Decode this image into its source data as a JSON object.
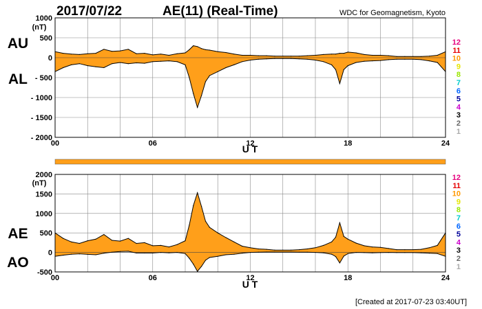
{
  "header": {
    "date": "2017/07/22",
    "title": "AE(11) (Real-Time)",
    "source": "WDC for Geomagnetism, Kyoto"
  },
  "footer": {
    "created": "[Created at 2017-07-23 03:40UT]"
  },
  "station_scale": {
    "labels": [
      "12",
      "11",
      "10",
      "9",
      "8",
      "7",
      "6",
      "5",
      "4",
      "3",
      "2",
      "1"
    ],
    "colors": [
      "#e6007e",
      "#e60000",
      "#ff9900",
      "#e6e600",
      "#99e600",
      "#00cccc",
      "#0066ff",
      "#000099",
      "#cc00cc",
      "#000000",
      "#666666",
      "#aaaaaa"
    ]
  },
  "coverage_bar": {
    "color": "#ff9f1a",
    "fraction": 1.0
  },
  "colors": {
    "fill": "#ff9f1a",
    "line": "#000000",
    "grid": "#888888"
  },
  "chart_data": [
    {
      "type": "area",
      "panel": "AU/AL",
      "upper_label": "AU",
      "lower_label": "AL",
      "ylabel": "(nT)",
      "xlabel": "U T",
      "xlim": [
        0,
        24
      ],
      "ylim": [
        -2000,
        1000
      ],
      "xticks": [
        "00",
        "06",
        "12",
        "18",
        "24"
      ],
      "yticks": [
        "1000",
        "500",
        "0",
        "- 500",
        "- 1000",
        "- 1500",
        "- 2000"
      ],
      "grid": true,
      "x": [
        0,
        0.5,
        1,
        1.5,
        2,
        2.5,
        3,
        3.5,
        4,
        4.5,
        5,
        5.5,
        6,
        6.5,
        7,
        7.5,
        8,
        8.25,
        8.5,
        8.75,
        9,
        9.25,
        9.5,
        10,
        10.5,
        11,
        11.5,
        12,
        12.5,
        13,
        13.5,
        14,
        14.5,
        15,
        15.5,
        16,
        16.5,
        17,
        17.25,
        17.5,
        17.75,
        18,
        18.5,
        19,
        19.5,
        20,
        20.5,
        21,
        21.5,
        22,
        22.5,
        23,
        23.5,
        24
      ],
      "series": [
        {
          "name": "AU",
          "values": [
            150,
            110,
            90,
            80,
            100,
            110,
            210,
            160,
            170,
            210,
            100,
            110,
            70,
            90,
            60,
            100,
            120,
            200,
            300,
            280,
            230,
            200,
            190,
            150,
            130,
            90,
            60,
            60,
            50,
            50,
            40,
            40,
            40,
            40,
            50,
            60,
            80,
            90,
            90,
            110,
            110,
            140,
            120,
            80,
            60,
            60,
            50,
            30,
            30,
            30,
            30,
            40,
            60,
            150
          ]
        },
        {
          "name": "AL",
          "values": [
            -350,
            -250,
            -180,
            -150,
            -200,
            -230,
            -250,
            -150,
            -120,
            -150,
            -130,
            -140,
            -100,
            -90,
            -80,
            -100,
            -180,
            -500,
            -900,
            -1250,
            -950,
            -600,
            -450,
            -350,
            -250,
            -180,
            -100,
            -60,
            -40,
            -30,
            -20,
            -20,
            -20,
            -30,
            -40,
            -60,
            -100,
            -180,
            -300,
            -650,
            -300,
            -200,
            -120,
            -90,
            -80,
            -70,
            -50,
            -40,
            -40,
            -40,
            -50,
            -80,
            -120,
            -350
          ]
        }
      ]
    },
    {
      "type": "area",
      "panel": "AE/AO",
      "upper_label": "AE",
      "lower_label": "AO",
      "ylabel": "(nT)",
      "xlabel": "U T",
      "xlim": [
        0,
        24
      ],
      "ylim": [
        -500,
        2000
      ],
      "xticks": [
        "00",
        "06",
        "12",
        "18",
        "24"
      ],
      "yticks": [
        "2000",
        "1500",
        "1000",
        "500",
        "0",
        "-500"
      ],
      "grid": true,
      "x": [
        0,
        0.5,
        1,
        1.5,
        2,
        2.5,
        3,
        3.5,
        4,
        4.5,
        5,
        5.5,
        6,
        6.5,
        7,
        7.5,
        8,
        8.25,
        8.5,
        8.75,
        9,
        9.25,
        9.5,
        10,
        10.5,
        11,
        11.5,
        12,
        12.5,
        13,
        13.5,
        14,
        14.5,
        15,
        15.5,
        16,
        16.5,
        17,
        17.25,
        17.5,
        17.75,
        18,
        18.5,
        19,
        19.5,
        20,
        20.5,
        21,
        21.5,
        22,
        22.5,
        23,
        23.5,
        24
      ],
      "series": [
        {
          "name": "AE",
          "values": [
            500,
            360,
            270,
            230,
            300,
            340,
            460,
            310,
            290,
            360,
            230,
            250,
            170,
            180,
            140,
            200,
            300,
            700,
            1200,
            1530,
            1180,
            800,
            640,
            500,
            380,
            270,
            160,
            120,
            90,
            80,
            60,
            60,
            60,
            70,
            90,
            120,
            180,
            270,
            390,
            760,
            410,
            340,
            240,
            170,
            140,
            130,
            100,
            70,
            70,
            70,
            80,
            120,
            180,
            500
          ]
        },
        {
          "name": "AO",
          "values": [
            -100,
            -70,
            -45,
            -35,
            -50,
            -60,
            -20,
            5,
            25,
            30,
            -15,
            -15,
            -15,
            0,
            -10,
            0,
            -30,
            -150,
            -300,
            -485,
            -360,
            -200,
            -130,
            -100,
            -60,
            -45,
            -20,
            0,
            5,
            10,
            10,
            10,
            10,
            5,
            5,
            0,
            -10,
            -45,
            -105,
            -270,
            -95,
            -30,
            0,
            -5,
            -10,
            -5,
            0,
            -5,
            -5,
            -5,
            -10,
            -20,
            -30,
            -100
          ]
        }
      ]
    }
  ]
}
